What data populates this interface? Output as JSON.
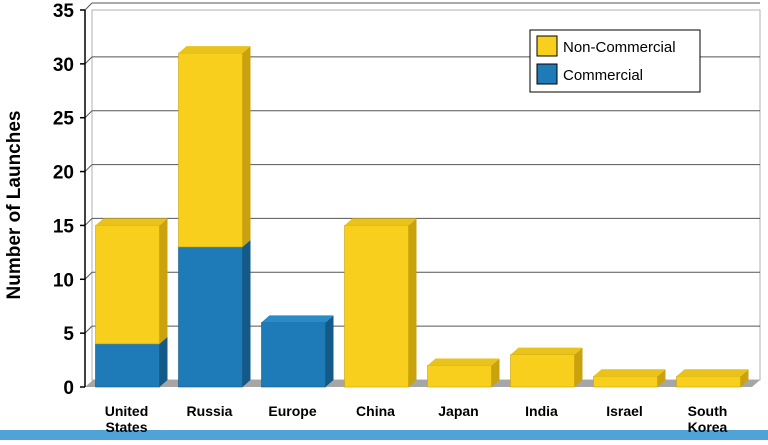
{
  "chart_data": {
    "type": "bar",
    "stacked": true,
    "categories": [
      "United States",
      "Russia",
      "Europe",
      "China",
      "Japan",
      "India",
      "Israel",
      "South Korea"
    ],
    "category_lines": [
      [
        "United",
        "States"
      ],
      [
        "Russia"
      ],
      [
        "Europe"
      ],
      [
        "China"
      ],
      [
        "Japan"
      ],
      [
        "India"
      ],
      [
        "Israel"
      ],
      [
        "South",
        "Korea"
      ]
    ],
    "series": [
      {
        "name": "Commercial",
        "values": [
          4,
          13,
          6,
          0,
          0,
          0,
          0,
          0
        ]
      },
      {
        "name": "Non-Commercial",
        "values": [
          11,
          18,
          0,
          15,
          2,
          3,
          1,
          1
        ]
      }
    ],
    "ylabel": "Number of Launches",
    "xlabel": "",
    "ylim": [
      0,
      35
    ],
    "yticks": [
      0,
      5,
      10,
      15,
      20,
      25,
      30,
      35
    ],
    "grid": true,
    "legend_position": "top-right",
    "legend_order": [
      "Non-Commercial",
      "Commercial"
    ],
    "colors": {
      "Commercial": "#1f7ab8",
      "Commercial_side": "#145a88",
      "Commercial_top": "#2a8bc9",
      "Non-Commercial": "#f7cf1c",
      "Non-Commercial_side": "#c9a20e",
      "Non-Commercial_top": "#e9c21a",
      "floor": "#a6a6a6",
      "frame": "#b0b0b0",
      "accent": "#4fa3d6"
    }
  }
}
